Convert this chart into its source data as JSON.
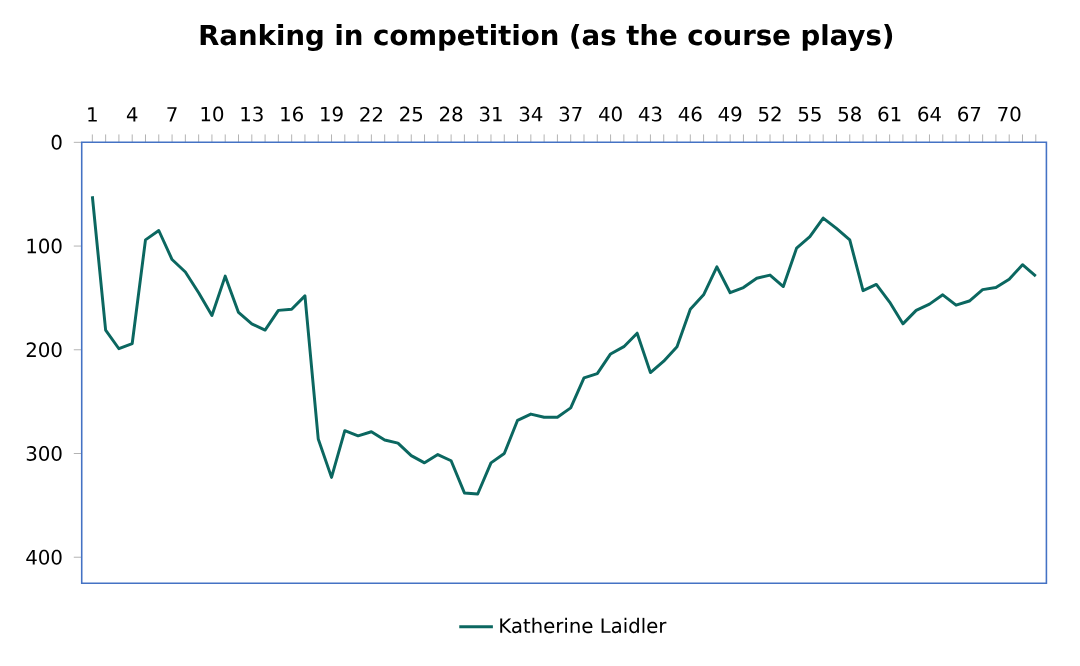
{
  "chart_data": {
    "type": "line",
    "title": "Ranking in competition (as the course plays)",
    "categories": [
      "1",
      null,
      null,
      "4",
      null,
      null,
      "7",
      null,
      null,
      "10",
      null,
      null,
      "13",
      null,
      null,
      "16",
      null,
      null,
      "19",
      null,
      null,
      "22",
      null,
      null,
      "25",
      null,
      null,
      "28",
      null,
      null,
      "31",
      null,
      null,
      "34",
      null,
      null,
      "37",
      null,
      null,
      "40",
      null,
      null,
      "43",
      null,
      null,
      "46",
      null,
      null,
      "49",
      null,
      null,
      "52",
      null,
      null,
      "55",
      null,
      null,
      "58",
      null,
      null,
      "61",
      null,
      null,
      "64",
      null,
      null,
      "67",
      null,
      null,
      "70",
      null,
      null
    ],
    "series": [
      {
        "name": "Katherine Laidler",
        "color": "#0b6760",
        "values": [
          52,
          181,
          199,
          194,
          94,
          85,
          113,
          125,
          145,
          167,
          129,
          164,
          175,
          181,
          162,
          161,
          148,
          286,
          323,
          278,
          283,
          279,
          287,
          290,
          302,
          309,
          301,
          307,
          338,
          339,
          309,
          300,
          268,
          262,
          265,
          265,
          256,
          227,
          223,
          204,
          197,
          184,
          222,
          211,
          197,
          161,
          147,
          120,
          145,
          140,
          131,
          128,
          139,
          102,
          91,
          73,
          83,
          94,
          143,
          137,
          154,
          175,
          162,
          156,
          147,
          157,
          153,
          142,
          140,
          132,
          118,
          129
        ]
      }
    ],
    "ylim": [
      425,
      0
    ],
    "yticks": [
      0,
      100,
      200,
      300,
      400
    ],
    "legend": "bottom",
    "grid": false,
    "marker": "none",
    "line_style": "solid"
  }
}
